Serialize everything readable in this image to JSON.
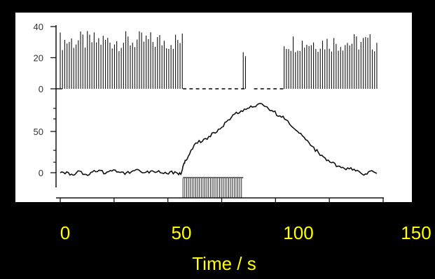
{
  "colors": {
    "background": "#000000",
    "panel": "#ffffff",
    "trace": "#111111",
    "label_text": "#ffff00"
  },
  "chart_data": [
    {
      "type": "bar",
      "title": "",
      "xlabel": "Time / s",
      "ylabel": "",
      "xlim": [
        -2,
        150
      ],
      "ylim": [
        0,
        42
      ],
      "yticks": [
        0,
        20,
        40
      ],
      "xticks": [
        0,
        50,
        100,
        150
      ],
      "grid": false,
      "bursts": [
        {
          "x_start": 0,
          "x_end": 57,
          "mean_height": 31
        },
        {
          "x_start": 85,
          "x_end": 87,
          "mean_height": 24
        },
        {
          "x_start": 104,
          "x_end": 148,
          "mean_height": 30
        }
      ],
      "silent_interval": {
        "x_start": 57,
        "x_end": 104
      }
    },
    {
      "type": "line",
      "title": "",
      "xlabel": "Time / s",
      "ylabel": "",
      "xlim": [
        -2,
        150
      ],
      "ylim": [
        -12,
        100
      ],
      "yticks": [
        0,
        50
      ],
      "grid": false,
      "x": [
        0,
        3,
        6,
        9,
        12,
        15,
        18,
        21,
        24,
        27,
        30,
        33,
        36,
        39,
        42,
        45,
        48,
        51,
        54,
        56,
        57,
        58,
        60,
        63,
        66,
        69,
        72,
        75,
        78,
        81,
        84,
        87,
        90,
        93,
        96,
        99,
        102,
        105,
        108,
        111,
        114,
        117,
        120,
        123,
        126,
        129,
        132,
        135,
        138,
        141,
        144,
        147
      ],
      "y": [
        0,
        1,
        -3,
        2,
        -2,
        1,
        3,
        -1,
        2,
        1,
        -2,
        1,
        4,
        0,
        2,
        1,
        -1,
        1,
        0,
        -2,
        8,
        15,
        22,
        36,
        38,
        44,
        48,
        55,
        64,
        71,
        75,
        78,
        80,
        84,
        80,
        74,
        69,
        64,
        55,
        48,
        40,
        32,
        24,
        18,
        12,
        8,
        5,
        6,
        3,
        -3,
        2,
        -1
      ]
    },
    {
      "type": "bar",
      "title": "",
      "xlabel": "Time / s",
      "ylabel": "",
      "stimulus": {
        "x_start": 57,
        "x_end": 85
      }
    }
  ]
}
